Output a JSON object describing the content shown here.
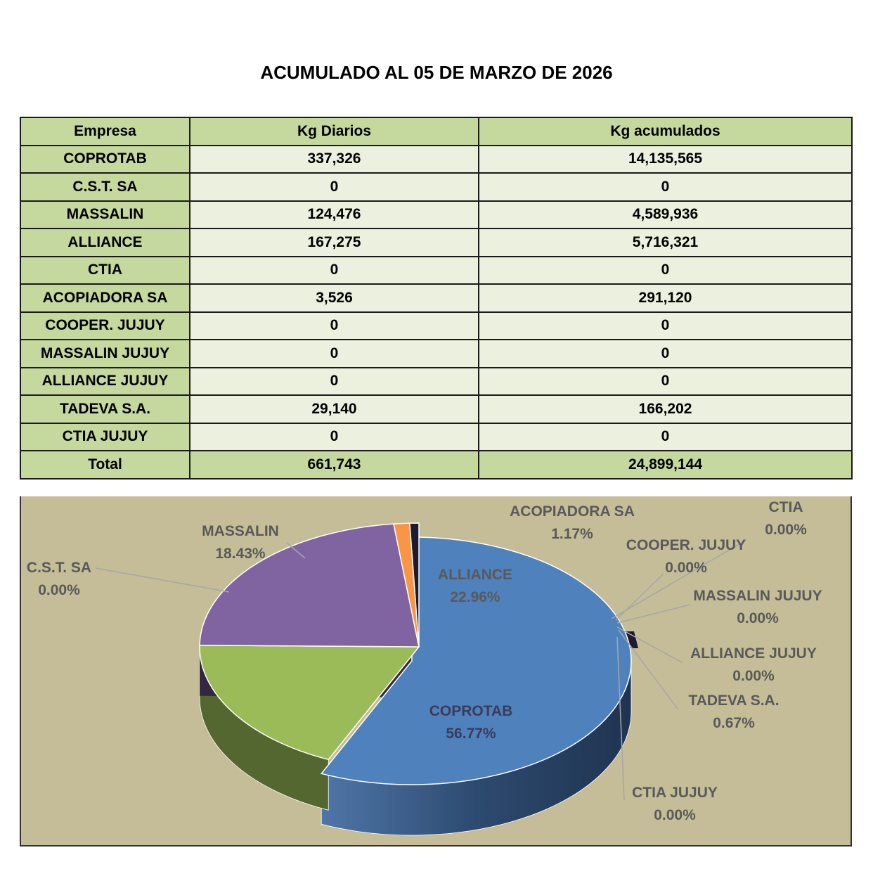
{
  "title": "ACUMULADO AL 05 DE MARZO DE 2026",
  "table": {
    "headers": [
      "Empresa",
      "Kg Diarios",
      "Kg acumulados"
    ],
    "rows": [
      {
        "empresa": "COPROTAB",
        "diarios": "337,326",
        "acumulados": "14,135,565"
      },
      {
        "empresa": "C.S.T. SA",
        "diarios": "0",
        "acumulados": "0"
      },
      {
        "empresa": "MASSALIN",
        "diarios": "124,476",
        "acumulados": "4,589,936"
      },
      {
        "empresa": "ALLIANCE",
        "diarios": "167,275",
        "acumulados": "5,716,321"
      },
      {
        "empresa": "CTIA",
        "diarios": "0",
        "acumulados": "0"
      },
      {
        "empresa": "ACOPIADORA SA",
        "diarios": "3,526",
        "acumulados": "291,120"
      },
      {
        "empresa": "COOPER. JUJUY",
        "diarios": "0",
        "acumulados": "0"
      },
      {
        "empresa": "MASSALIN JUJUY",
        "diarios": "0",
        "acumulados": "0"
      },
      {
        "empresa": "ALLIANCE JUJUY",
        "diarios": "0",
        "acumulados": "0"
      },
      {
        "empresa": "TADEVA S.A.",
        "diarios": "29,140",
        "acumulados": "166,202"
      },
      {
        "empresa": "CTIA JUJUY",
        "diarios": "0",
        "acumulados": "0"
      }
    ],
    "total": {
      "empresa": "Total",
      "diarios": "661,743",
      "acumulados": "24,899,144"
    }
  },
  "chart_data": {
    "type": "pie",
    "three_d": true,
    "categories": [
      "COPROTAB",
      "C.S.T. SA",
      "MASSALIN",
      "ALLIANCE",
      "CTIA",
      "ACOPIADORA SA",
      "COOPER. JUJUY",
      "MASSALIN JUJUY",
      "ALLIANCE JUJUY",
      "TADEVA S.A.",
      "CTIA JUJUY"
    ],
    "values": [
      56.77,
      0.0,
      18.43,
      22.96,
      0.0,
      1.17,
      0.0,
      0.0,
      0.0,
      0.67,
      0.0
    ],
    "labels": [
      "56.77%",
      "0.00%",
      "18.43%",
      "22.96%",
      "0.00%",
      "1.17%",
      "0.00%",
      "0.00%",
      "0.00%",
      "0.67%",
      "0.00%"
    ],
    "colors": {
      "COPROTAB": "#4f81bd",
      "MASSALIN": "#9bbb59",
      "ALLIANCE": "#8064a2",
      "ACOPIADORA SA": "#f79646",
      "TADEVA S.A.": "#1f1a2e",
      "background": "#c4bd97"
    }
  }
}
